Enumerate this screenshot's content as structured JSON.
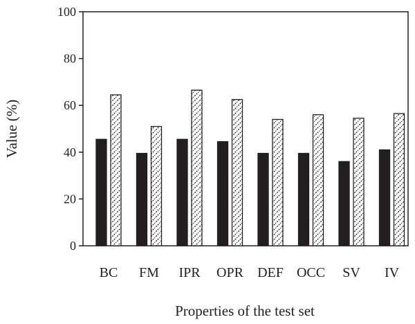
{
  "chart_data": {
    "type": "bar",
    "title": "",
    "xlabel": "Properties of the test set",
    "ylabel": "Value (%)",
    "ylim": [
      0,
      100
    ],
    "yticks": [
      0,
      20,
      40,
      60,
      80,
      100
    ],
    "categories": [
      "BC",
      "FM",
      "IPR",
      "OPR",
      "DEF",
      "OCC",
      "SV",
      "IV"
    ],
    "series": [
      {
        "fill": "solid",
        "color": "#231f20",
        "values": [
          45.5,
          39.5,
          45.5,
          44.5,
          39.5,
          39.5,
          36,
          41
        ]
      },
      {
        "fill": "hatched",
        "color": "#231f20",
        "values": [
          64.5,
          51,
          66.5,
          62.5,
          54,
          56,
          54.5,
          56.5
        ]
      }
    ],
    "grid": false,
    "legend": "none"
  }
}
